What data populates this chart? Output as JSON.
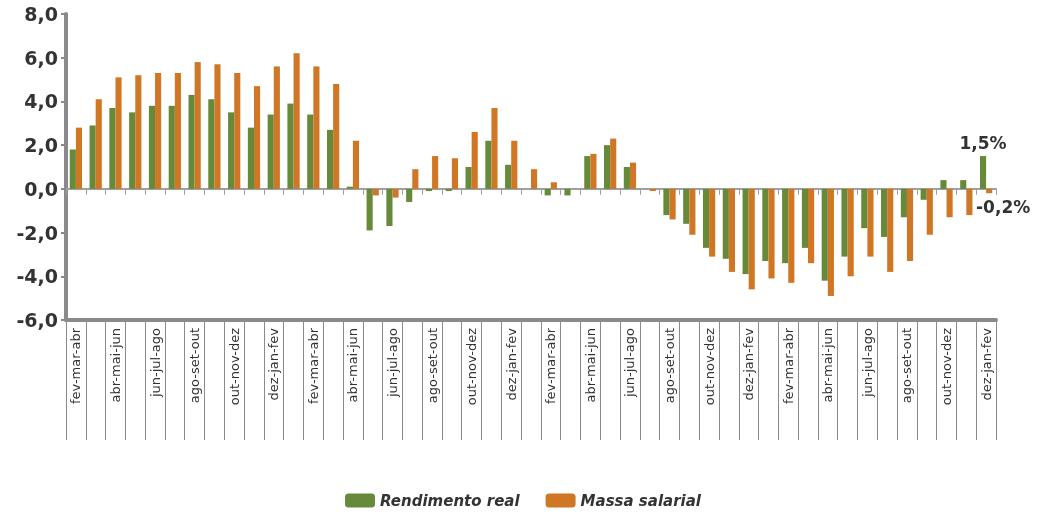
{
  "chart_data": {
    "type": "bar",
    "categories": [
      "fev-mar-abr",
      null,
      "abr-mai-jun",
      null,
      "jun-jul-ago",
      null,
      "ago-set-out",
      null,
      "out-nov-dez",
      null,
      "dez-jan-fev",
      null,
      "fev-mar-abr",
      null,
      "abr-mai-jun",
      null,
      "jun-jul-ago",
      null,
      "ago-set-out",
      null,
      "out-nov-dez",
      null,
      "dez-jan-fev",
      null,
      "fev-mar-abr",
      null,
      "abr-mai-jun",
      null,
      "jun-jul-ago",
      null,
      "ago-set-out",
      null,
      "out-nov-dez",
      null,
      "dez-jan-fev",
      null,
      "fev-mar-abr",
      null,
      "abr-mai-jun",
      null,
      "jun-jul-ago",
      null,
      "ago-set-out",
      null,
      "out-nov-dez",
      null,
      "dez-jan-fev"
    ],
    "series": [
      {
        "name": "Rendimento real",
        "color": "#668a3a",
        "values": [
          1.8,
          2.9,
          3.7,
          3.5,
          3.8,
          3.8,
          4.3,
          4.1,
          3.5,
          2.8,
          3.4,
          3.9,
          3.4,
          2.7,
          0.1,
          -1.9,
          -1.7,
          -0.6,
          -0.1,
          -0.1,
          1.0,
          2.2,
          1.1,
          0,
          -0.3,
          -0.3,
          1.5,
          2.0,
          1.0,
          0,
          -1.2,
          -1.6,
          -2.7,
          -3.2,
          -3.9,
          -3.3,
          -3.4,
          -2.7,
          -4.2,
          -3.1,
          -1.8,
          -2.2,
          -1.3,
          -0.5,
          0.4,
          0.4,
          1.5
        ],
        "value_labels": [
          null,
          null,
          null,
          null,
          null,
          null,
          null,
          null,
          null,
          null,
          null,
          null,
          null,
          null,
          null,
          null,
          null,
          null,
          null,
          null,
          null,
          null,
          null,
          null,
          null,
          null,
          null,
          null,
          null,
          null,
          null,
          null,
          null,
          null,
          null,
          null,
          null,
          null,
          null,
          null,
          null,
          null,
          null,
          null,
          null,
          null,
          "1,5%"
        ]
      },
      {
        "name": "Massa salarial",
        "color": "#d07726",
        "values": [
          2.8,
          4.1,
          5.1,
          5.2,
          5.3,
          5.3,
          5.8,
          5.7,
          5.3,
          4.7,
          5.6,
          6.2,
          5.6,
          4.8,
          2.2,
          -0.3,
          -0.4,
          0.9,
          1.5,
          1.4,
          2.6,
          3.7,
          2.2,
          0.9,
          0.3,
          0,
          1.6,
          2.3,
          1.2,
          -0.1,
          -1.4,
          -2.1,
          -3.1,
          -3.8,
          -4.6,
          -4.1,
          -4.3,
          -3.4,
          -4.9,
          -4.0,
          -3.1,
          -3.8,
          -3.3,
          -2.1,
          -1.3,
          -1.2,
          -0.2
        ],
        "value_labels": [
          null,
          null,
          null,
          null,
          null,
          null,
          null,
          null,
          null,
          null,
          null,
          null,
          null,
          null,
          null,
          null,
          null,
          null,
          null,
          null,
          null,
          null,
          null,
          null,
          null,
          null,
          null,
          null,
          null,
          null,
          null,
          null,
          null,
          null,
          null,
          null,
          null,
          null,
          null,
          null,
          null,
          null,
          null,
          null,
          null,
          null,
          "-0,2%"
        ]
      }
    ],
    "ylim": [
      -6,
      8
    ],
    "yticks": [
      {
        "value": -6,
        "label": "-6,0"
      },
      {
        "value": -4,
        "label": "-4,0"
      },
      {
        "value": -2,
        "label": "-2,0"
      },
      {
        "value": 0,
        "label": "0,0"
      },
      {
        "value": 2,
        "label": "2,0"
      },
      {
        "value": 4,
        "label": "4,0"
      },
      {
        "value": 6,
        "label": "6,0"
      },
      {
        "value": 8,
        "label": "8,0"
      }
    ],
    "legend": "bottom"
  }
}
